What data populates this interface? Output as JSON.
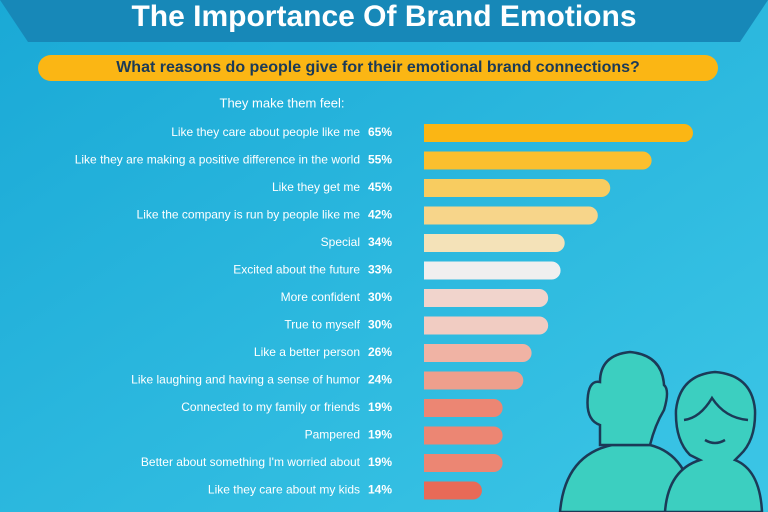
{
  "chart_data": {
    "type": "bar",
    "title": "The Importance Of Brand Emotions",
    "subtitle": "What reasons do people give for their emotional brand connections?",
    "category_header": "They make them feel:",
    "categories": [
      "Like they care about people like me",
      "Like they are making a positive difference in the world",
      "Like they get me",
      "Like the company is run by people like me",
      "Special",
      "Excited about the future",
      "More confident",
      "True to myself",
      "Like a better person",
      "Like laughing and having a sense of humor",
      "Connected to my family or friends",
      "Pampered",
      "Better about something I'm worried about",
      "Like they care about my kids"
    ],
    "values": [
      65,
      55,
      45,
      42,
      34,
      33,
      30,
      30,
      26,
      24,
      19,
      19,
      19,
      14
    ],
    "value_labels": [
      "65%",
      "55%",
      "45%",
      "42%",
      "34%",
      "33%",
      "30%",
      "30%",
      "26%",
      "24%",
      "19%",
      "19%",
      "19%",
      "14%"
    ],
    "colors": [
      "#fbb614",
      "#fbbf2e",
      "#f8cc60",
      "#f7d58a",
      "#f4e2b8",
      "#f0efef",
      "#f1d4cc",
      "#f1ccc2",
      "#f0b3a4",
      "#ee9f8c",
      "#ec8673",
      "#ec8673",
      "#ec8673",
      "#e86a57"
    ]
  }
}
